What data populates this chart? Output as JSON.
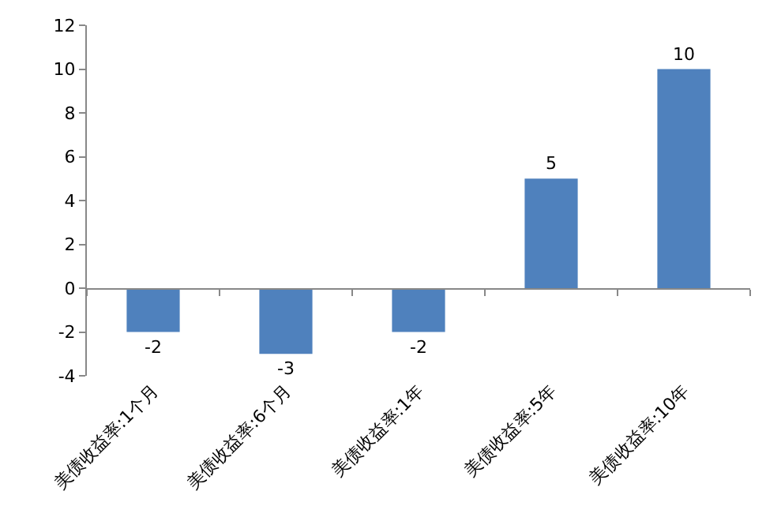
{
  "chart_data": {
    "type": "bar",
    "categories": [
      "美债收益率:1个月",
      "美债收益率:6个月",
      "美债收益率:1年",
      "美债收益率:5年",
      "美债收益率:10年"
    ],
    "values": [
      -2,
      -3,
      -2,
      5,
      10
    ],
    "color": "#4f81bd",
    "ylim": [
      -4,
      12
    ],
    "yticks": [
      -4,
      -2,
      0,
      2,
      4,
      6,
      8,
      10,
      12
    ],
    "data_labels": true,
    "legend": false
  }
}
